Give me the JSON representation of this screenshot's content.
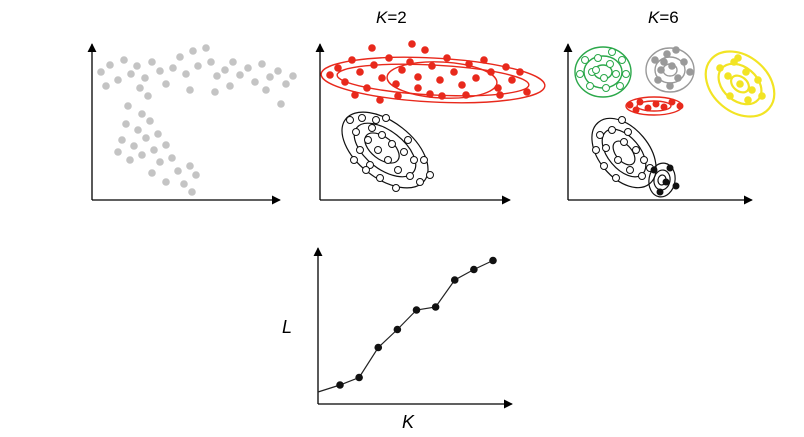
{
  "panels": {
    "k2": {
      "k_symbol": "K",
      "k_value": "=2"
    },
    "k6": {
      "k_symbol": "K",
      "k_value": "=6"
    }
  },
  "likelihood_plot": {
    "ylabel": "L",
    "xlabel": "K",
    "chart_data": {
      "type": "line",
      "x": [
        1,
        2,
        3,
        4,
        5,
        6,
        7,
        8,
        9
      ],
      "values": [
        0.1,
        0.15,
        0.35,
        0.47,
        0.6,
        0.62,
        0.8,
        0.87,
        0.93
      ],
      "xlabel": "K",
      "ylabel": "L"
    }
  },
  "colors": {
    "raw_points": "#c4c4c4",
    "cluster_red": "#e8291c",
    "cluster_green": "#2ba84a",
    "cluster_gray": "#9a9a9a",
    "cluster_yellow": "#f2e424",
    "cluster_black": "#111111"
  }
}
